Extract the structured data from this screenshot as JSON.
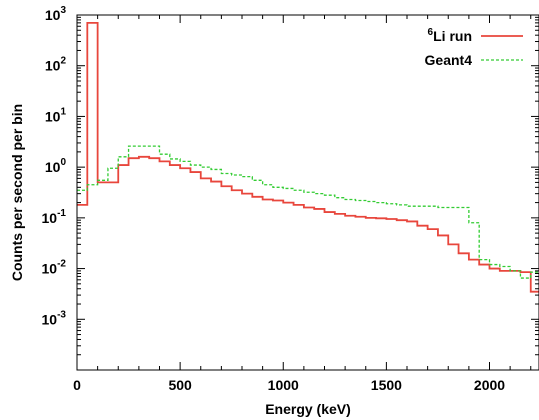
{
  "chart_data": {
    "type": "line",
    "xlabel": "Energy (keV)",
    "ylabel": "Counts per second per bin",
    "xlim": [
      0,
      2240
    ],
    "ylim_log10": [
      -4,
      3
    ],
    "y_scale": "log",
    "grid": false,
    "legend_position": "top-right",
    "x_ticks": [
      0,
      500,
      1000,
      1500,
      2000
    ],
    "x_tick_labels": [
      "0",
      "500",
      "1000",
      "1500",
      "2000"
    ],
    "y_ticks": [
      {
        "base": "10",
        "exp": "-3",
        "value": 0.001
      },
      {
        "base": "10",
        "exp": "-2",
        "value": 0.01
      },
      {
        "base": "10",
        "exp": "-1",
        "value": 0.1
      },
      {
        "base": "10",
        "exp": "0",
        "value": 1
      },
      {
        "base": "10",
        "exp": "1",
        "value": 10
      },
      {
        "base": "10",
        "exp": "2",
        "value": 100
      },
      {
        "base": "10",
        "exp": "3",
        "value": 1000
      }
    ],
    "bin_width": 50,
    "series": [
      {
        "name_sup": "6",
        "name_main": "Li run",
        "color": "#e8463c",
        "style": "solid",
        "bin_edges": [
          0,
          50,
          100,
          150,
          200,
          250,
          300,
          350,
          400,
          450,
          500,
          550,
          600,
          650,
          700,
          750,
          800,
          850,
          900,
          950,
          1000,
          1050,
          1100,
          1150,
          1200,
          1250,
          1300,
          1350,
          1400,
          1450,
          1500,
          1550,
          1600,
          1650,
          1700,
          1750,
          1800,
          1850,
          1900,
          1950,
          2000,
          2050,
          2100,
          2150,
          2200,
          2240
        ],
        "values": [
          0.18,
          700,
          0.5,
          0.5,
          1.1,
          1.5,
          1.6,
          1.5,
          1.3,
          1.1,
          0.95,
          0.8,
          0.6,
          0.52,
          0.42,
          0.35,
          0.3,
          0.26,
          0.23,
          0.22,
          0.2,
          0.18,
          0.16,
          0.15,
          0.13,
          0.12,
          0.11,
          0.105,
          0.1,
          0.098,
          0.095,
          0.09,
          0.085,
          0.07,
          0.06,
          0.045,
          0.03,
          0.02,
          0.015,
          0.012,
          0.01,
          0.009,
          0.009,
          0.0085,
          0.0035
        ]
      },
      {
        "name": "Geant4",
        "color": "#33cc33",
        "style": "dashed",
        "bin_edges": [
          0,
          50,
          100,
          150,
          200,
          250,
          300,
          350,
          400,
          450,
          500,
          550,
          600,
          650,
          700,
          750,
          800,
          850,
          900,
          950,
          1000,
          1050,
          1100,
          1150,
          1200,
          1250,
          1300,
          1350,
          1400,
          1450,
          1500,
          1550,
          1600,
          1650,
          1700,
          1750,
          1800,
          1850,
          1900,
          1950,
          2000,
          2050,
          2100,
          2150,
          2200,
          2240
        ],
        "values": [
          0.35,
          0.45,
          0.55,
          0.95,
          1.6,
          2.6,
          2.6,
          2.6,
          1.8,
          1.45,
          1.3,
          1.1,
          1.0,
          0.9,
          0.75,
          0.7,
          0.65,
          0.55,
          0.45,
          0.4,
          0.38,
          0.35,
          0.32,
          0.3,
          0.28,
          0.25,
          0.23,
          0.22,
          0.21,
          0.2,
          0.19,
          0.18,
          0.17,
          0.17,
          0.17,
          0.16,
          0.16,
          0.16,
          0.08,
          0.015,
          0.012,
          0.011,
          0.009,
          0.0065,
          0.0085
        ]
      }
    ]
  }
}
